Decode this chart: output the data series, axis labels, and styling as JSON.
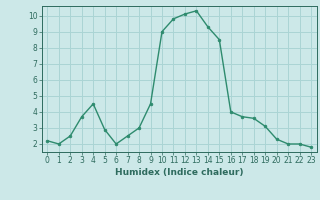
{
  "x": [
    0,
    1,
    2,
    3,
    4,
    5,
    6,
    7,
    8,
    9,
    10,
    11,
    12,
    13,
    14,
    15,
    16,
    17,
    18,
    19,
    20,
    21,
    22,
    23
  ],
  "y": [
    2.2,
    2.0,
    2.5,
    3.7,
    4.5,
    2.9,
    2.0,
    2.5,
    3.0,
    4.5,
    9.0,
    9.8,
    10.1,
    10.3,
    9.3,
    8.5,
    4.0,
    3.7,
    3.6,
    3.1,
    2.3,
    2.0,
    2.0,
    1.8
  ],
  "xlabel": "Humidex (Indice chaleur)",
  "line_color": "#2e8b6e",
  "marker_color": "#2e8b6e",
  "bg_color": "#cce8e8",
  "grid_color": "#aad4d4",
  "ylim": [
    1.5,
    10.6
  ],
  "xlim": [
    -0.5,
    23.5
  ],
  "yticks": [
    2,
    3,
    4,
    5,
    6,
    7,
    8,
    9,
    10
  ],
  "xticks": [
    0,
    1,
    2,
    3,
    4,
    5,
    6,
    7,
    8,
    9,
    10,
    11,
    12,
    13,
    14,
    15,
    16,
    17,
    18,
    19,
    20,
    21,
    22,
    23
  ],
  "xlabel_fontsize": 6.5,
  "tick_fontsize": 5.5
}
